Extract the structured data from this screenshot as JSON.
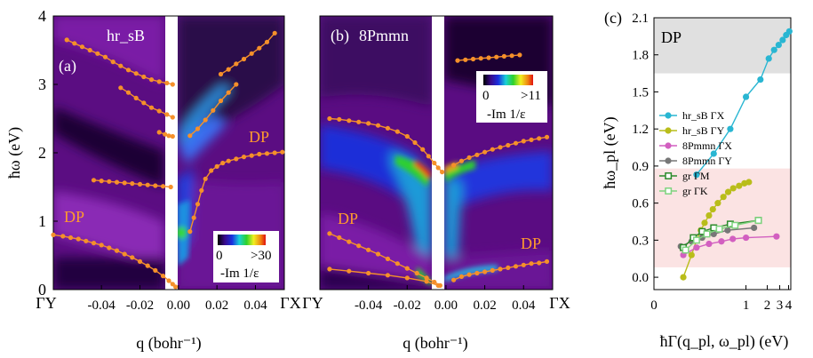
{
  "chart_data": [
    {
      "type": "heatmap",
      "panel_label": "(a)",
      "title": "hr_sB",
      "xlabel": "q (bohr⁻¹)",
      "ylabel": "ħω (eV)",
      "xlim": [
        -0.065,
        0.055
      ],
      "ylim": [
        0,
        4
      ],
      "x_ticks": [
        "-0.04",
        "-0.02",
        "0.00",
        "0.02",
        "0.04"
      ],
      "x_tick_values": [
        -0.04,
        -0.02,
        0,
        0.02,
        0.04
      ],
      "y_ticks": [
        "0",
        "1",
        "2",
        "3",
        "4"
      ],
      "end_labels": [
        "ΓY",
        "ΓX"
      ],
      "annotations": [
        "DP",
        "DP"
      ],
      "colorbar": {
        "min_label": "0",
        "max_label": ">30",
        "label": "-Im 1/ε"
      },
      "series": [
        {
          "name": "left-top",
          "x": [
            -0.058,
            -0.054,
            -0.05,
            -0.046,
            -0.042,
            -0.038,
            -0.034,
            -0.03,
            -0.026,
            -0.022,
            -0.018,
            -0.014,
            -0.01,
            -0.006,
            -0.003
          ],
          "y": [
            3.65,
            3.6,
            3.55,
            3.5,
            3.45,
            3.4,
            3.33,
            3.27,
            3.21,
            3.16,
            3.11,
            3.07,
            3.04,
            3.02,
            3.0
          ]
        },
        {
          "name": "left-mid",
          "x": [
            -0.03,
            -0.026,
            -0.022,
            -0.018,
            -0.014,
            -0.01,
            -0.006,
            -0.003
          ],
          "y": [
            2.95,
            2.88,
            2.8,
            2.73,
            2.66,
            2.61,
            2.56,
            2.52
          ]
        },
        {
          "name": "left-2.2",
          "x": [
            -0.01,
            -0.007,
            -0.005,
            -0.003
          ],
          "y": [
            2.3,
            2.27,
            2.25,
            2.24
          ]
        },
        {
          "name": "left-1.5",
          "x": [
            -0.044,
            -0.04,
            -0.036,
            -0.032,
            -0.028,
            -0.024,
            -0.02,
            -0.016,
            -0.012,
            -0.008,
            -0.004
          ],
          "y": [
            1.6,
            1.59,
            1.58,
            1.57,
            1.56,
            1.55,
            1.54,
            1.53,
            1.52,
            1.51,
            1.5
          ]
        },
        {
          "name": "left-DP",
          "x": [
            -0.065,
            -0.06,
            -0.056,
            -0.052,
            -0.048,
            -0.044,
            -0.04,
            -0.036,
            -0.032,
            -0.028,
            -0.024,
            -0.02,
            -0.016,
            -0.012,
            -0.008,
            -0.005,
            -0.003,
            -0.0015
          ],
          "y": [
            0.8,
            0.78,
            0.76,
            0.74,
            0.71,
            0.68,
            0.65,
            0.61,
            0.57,
            0.52,
            0.47,
            0.41,
            0.35,
            0.28,
            0.2,
            0.13,
            0.08,
            0.04
          ]
        },
        {
          "name": "right-top",
          "x": [
            0.022,
            0.026,
            0.03,
            0.034,
            0.038,
            0.042,
            0.046,
            0.05
          ],
          "y": [
            3.15,
            3.22,
            3.3,
            3.37,
            3.45,
            3.53,
            3.62,
            3.75
          ]
        },
        {
          "name": "right-mid",
          "x": [
            0.006,
            0.01,
            0.014,
            0.018,
            0.022,
            0.026,
            0.03
          ],
          "y": [
            2.25,
            2.35,
            2.48,
            2.62,
            2.76,
            2.88,
            3.0
          ]
        },
        {
          "name": "right-DP",
          "x": [
            0.006,
            0.008,
            0.01,
            0.012,
            0.014,
            0.017,
            0.02,
            0.023,
            0.026,
            0.03,
            0.034,
            0.038,
            0.042,
            0.046,
            0.05,
            0.054
          ],
          "y": [
            0.85,
            1.05,
            1.25,
            1.45,
            1.62,
            1.74,
            1.8,
            1.85,
            1.88,
            1.91,
            1.94,
            1.96,
            1.98,
            1.99,
            2.0,
            2.01
          ]
        }
      ]
    },
    {
      "type": "heatmap",
      "panel_label": "(b)",
      "title": "8Pmmn",
      "xlabel": "q (bohr⁻¹)",
      "xlim": [
        -0.065,
        0.055
      ],
      "ylim": [
        0,
        4
      ],
      "x_ticks": [
        "-0.04",
        "-0.02",
        "0.00",
        "0.02",
        "0.04"
      ],
      "x_tick_values": [
        -0.04,
        -0.02,
        0,
        0.02,
        0.04
      ],
      "end_labels": [
        "ΓY",
        "ΓX"
      ],
      "annotations": [
        "DP",
        "DP"
      ],
      "colorbar": {
        "min_label": "0",
        "max_label": ">11",
        "label": "-Im 1/ε"
      },
      "series": [
        {
          "name": "left-2.5",
          "x": [
            -0.06,
            -0.055,
            -0.05,
            -0.045,
            -0.04,
            -0.035,
            -0.03,
            -0.025,
            -0.02,
            -0.016,
            -0.012,
            -0.009,
            -0.006,
            -0.004,
            -0.002
          ],
          "y": [
            2.5,
            2.49,
            2.47,
            2.45,
            2.43,
            2.4,
            2.36,
            2.31,
            2.24,
            2.15,
            2.05,
            1.95,
            1.85,
            1.78,
            1.72
          ]
        },
        {
          "name": "left-DP",
          "x": [
            -0.06,
            -0.055,
            -0.05,
            -0.045,
            -0.04,
            -0.035,
            -0.03,
            -0.025,
            -0.02,
            -0.015,
            -0.01,
            -0.006,
            -0.003
          ],
          "y": [
            0.82,
            0.76,
            0.7,
            0.64,
            0.58,
            0.52,
            0.45,
            0.38,
            0.31,
            0.24,
            0.17,
            0.11,
            0.06
          ]
        },
        {
          "name": "left-low",
          "x": [
            -0.06,
            -0.05,
            -0.04,
            -0.03,
            -0.02,
            -0.01,
            -0.004
          ],
          "y": [
            0.3,
            0.27,
            0.24,
            0.21,
            0.17,
            0.12,
            0.06
          ]
        },
        {
          "name": "right-top",
          "x": [
            0.006,
            0.01,
            0.014,
            0.018,
            0.022,
            0.026,
            0.03,
            0.034,
            0.038
          ],
          "y": [
            3.35,
            3.36,
            3.37,
            3.38,
            3.39,
            3.4,
            3.41,
            3.42,
            3.43
          ]
        },
        {
          "name": "right-2",
          "x": [
            0.004,
            0.008,
            0.012,
            0.016,
            0.02,
            0.024,
            0.028,
            0.032,
            0.036,
            0.04,
            0.044,
            0.048,
            0.052
          ],
          "y": [
            1.82,
            1.88,
            1.93,
            1.97,
            2.01,
            2.05,
            2.08,
            2.11,
            2.14,
            2.17,
            2.19,
            2.21,
            2.23
          ]
        },
        {
          "name": "right-DP",
          "x": [
            0.004,
            0.008,
            0.012,
            0.016,
            0.02,
            0.024,
            0.028,
            0.032,
            0.036,
            0.04,
            0.044,
            0.048,
            0.052
          ],
          "y": [
            0.14,
            0.19,
            0.22,
            0.24,
            0.26,
            0.28,
            0.3,
            0.32,
            0.34,
            0.36,
            0.38,
            0.39,
            0.41
          ]
        }
      ]
    },
    {
      "type": "scatter",
      "panel_label": "(c)",
      "xlabel": "ħΓ(q_pl, ω_pl) (eV)",
      "ylabel": "ħω_pl (eV)",
      "xscale": "log",
      "xlim": [
        0.05,
        4.3
      ],
      "ylim": [
        -0.1,
        2.1
      ],
      "x_ticks": [
        "0",
        "1",
        "2",
        "3",
        "4"
      ],
      "x_tick_values": [
        0.05,
        1,
        2,
        3,
        4
      ],
      "y_ticks": [
        "0.0",
        "0.3",
        "0.6",
        "0.9",
        "1.2",
        "1.5",
        "1.8",
        "2.1"
      ],
      "regions": [
        {
          "label": "DP",
          "ymin": 1.65,
          "ymax": 2.1,
          "color": "#e0e0e0"
        },
        {
          "label": "",
          "ymin": 0.08,
          "ymax": 0.88,
          "color": "#fbe3e3"
        }
      ],
      "series": [
        {
          "name": "hr_sB ΓX",
          "color": "#29b6d2",
          "marker": "circle",
          "x": [
            0.2,
            0.35,
            0.6,
            1.0,
            1.6,
            2.1,
            2.5,
            2.9,
            3.3,
            3.7,
            4.1
          ],
          "y": [
            0.83,
            1.0,
            1.2,
            1.46,
            1.6,
            1.77,
            1.84,
            1.88,
            1.92,
            1.96,
            1.99
          ]
        },
        {
          "name": "hr_sB ΓY",
          "color": "#b9bd1a",
          "marker": "circle",
          "x": [
            0.13,
            0.17,
            0.2,
            0.23,
            0.26,
            0.3,
            0.34,
            0.4,
            0.48,
            0.56,
            0.66,
            0.8,
            0.95,
            1.1
          ],
          "y": [
            0.0,
            0.18,
            0.3,
            0.38,
            0.44,
            0.5,
            0.55,
            0.6,
            0.65,
            0.69,
            0.72,
            0.74,
            0.76,
            0.77
          ]
        },
        {
          "name": "8Pmmn ΓX",
          "color": "#d25fc0",
          "marker": "circle",
          "x": [
            0.13,
            0.2,
            0.3,
            0.45,
            0.65,
            1.0,
            2.7
          ],
          "y": [
            0.18,
            0.24,
            0.27,
            0.29,
            0.31,
            0.32,
            0.33
          ]
        },
        {
          "name": "8Pmmn ΓY",
          "color": "#777777",
          "marker": "circle",
          "x": [
            0.12,
            0.17,
            0.24,
            0.35,
            0.55,
            1.3
          ],
          "y": [
            0.25,
            0.29,
            0.32,
            0.35,
            0.38,
            0.4
          ]
        },
        {
          "name": "gr ΓM",
          "color": "#2b8a2b",
          "marker": "square",
          "x": [
            0.13,
            0.18,
            0.24,
            0.35,
            0.6,
            1.5
          ],
          "y": [
            0.24,
            0.32,
            0.37,
            0.4,
            0.43,
            0.46
          ]
        },
        {
          "name": "gr ΓK",
          "color": "#7fd37f",
          "marker": "square",
          "x": [
            0.14,
            0.2,
            0.28,
            0.42,
            0.7,
            1.5
          ],
          "y": [
            0.22,
            0.3,
            0.35,
            0.39,
            0.42,
            0.46
          ]
        }
      ]
    }
  ]
}
